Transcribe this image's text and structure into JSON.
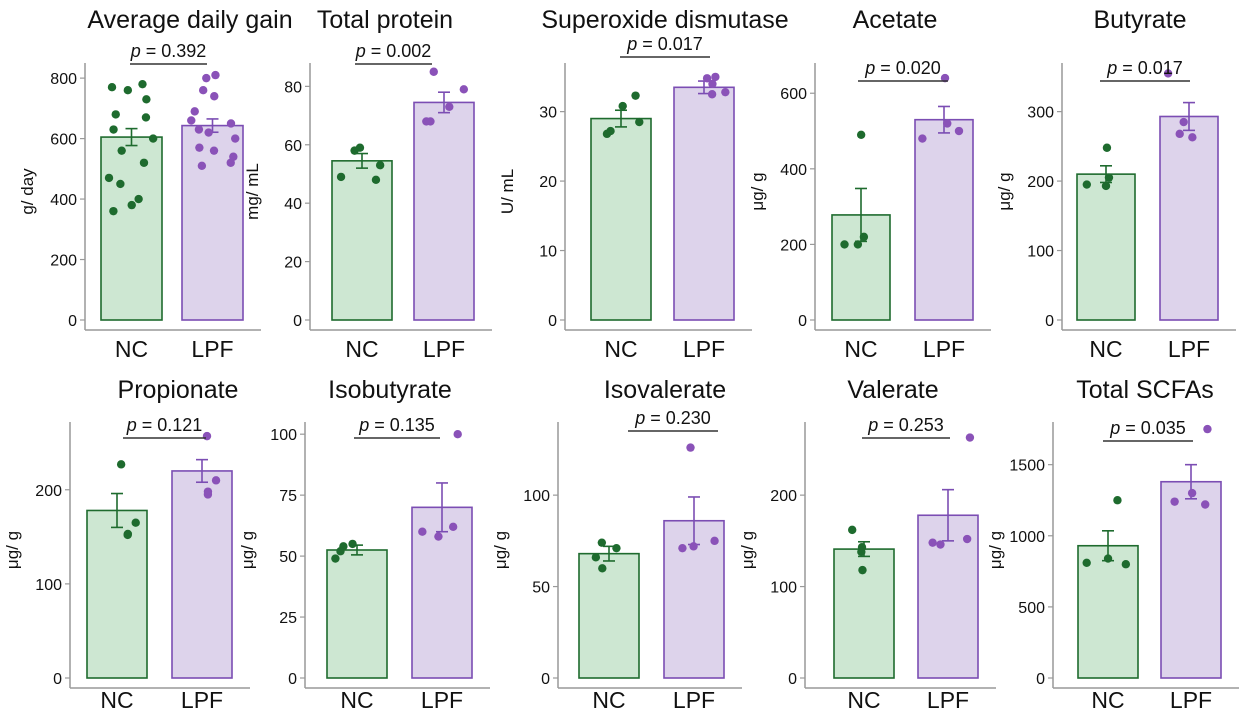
{
  "colors": {
    "nc_fill": "#cde7d2",
    "nc_stroke": "#1e6b2e",
    "nc_point": "#1e6b2e",
    "lpf_fill": "#ddd3eb",
    "lpf_stroke": "#7b4db3",
    "lpf_point": "#8a52b8",
    "axis": "#999999",
    "text": "#111111"
  },
  "chart_data": [
    {
      "type": "bar",
      "title": "Average daily gain",
      "ylabel": "g/ day",
      "pvalue": "p = 0.392",
      "categories": [
        "NC",
        "LPF"
      ],
      "values": [
        605,
        643
      ],
      "errors": [
        28,
        22
      ],
      "ylim": [
        0,
        850
      ],
      "yticks": [
        0,
        200,
        400,
        600,
        800
      ],
      "points": [
        [
          780,
          770,
          760,
          730,
          680,
          670,
          630,
          600,
          560,
          520,
          470,
          450,
          400,
          380,
          360
        ],
        [
          810,
          800,
          760,
          740,
          690,
          660,
          650,
          630,
          620,
          600,
          570,
          560,
          540,
          520,
          510
        ]
      ]
    },
    {
      "type": "bar",
      "title": "Total protein",
      "ylabel": "mg/ mL",
      "pvalue": "p = 0.002",
      "categories": [
        "NC",
        "LPF"
      ],
      "values": [
        54.5,
        74.5
      ],
      "errors": [
        2.5,
        3.5
      ],
      "ylim": [
        0,
        88
      ],
      "yticks": [
        0,
        20,
        40,
        60,
        80
      ],
      "points": [
        [
          59,
          58,
          53,
          49,
          48
        ],
        [
          85,
          79,
          73,
          68,
          68
        ]
      ]
    },
    {
      "type": "bar",
      "title": "Superoxide dismutase",
      "ylabel": "U/ mL",
      "pvalue": "p = 0.017",
      "categories": [
        "NC",
        "LPF"
      ],
      "values": [
        29,
        33.5
      ],
      "errors": [
        1.2,
        0.9
      ],
      "ylim": [
        0,
        37
      ],
      "yticks": [
        0,
        10,
        20,
        30
      ],
      "points": [
        [
          32.3,
          30.8,
          28.5,
          27.2,
          26.8
        ],
        [
          35,
          34.8,
          34,
          32.8,
          32.5
        ]
      ]
    },
    {
      "type": "bar",
      "title": "Acetate",
      "ylabel": "μg/ g",
      "pvalue": "p = 0.020",
      "categories": [
        "NC",
        "LPF"
      ],
      "values": [
        278,
        530
      ],
      "errors": [
        70,
        35
      ],
      "ylim": [
        0,
        680
      ],
      "yticks": [
        0,
        200,
        400,
        600
      ],
      "points": [
        [
          490,
          220,
          200,
          200
        ],
        [
          640,
          520,
          500,
          480
        ]
      ]
    },
    {
      "type": "bar",
      "title": "Butyrate",
      "ylabel": "μg/ g",
      "pvalue": "p = 0.017",
      "categories": [
        "NC",
        "LPF"
      ],
      "values": [
        210,
        293
      ],
      "errors": [
        12,
        20
      ],
      "ylim": [
        0,
        370
      ],
      "yticks": [
        0,
        100,
        200,
        300
      ],
      "points": [
        [
          248,
          205,
          195,
          193
        ],
        [
          355,
          285,
          268,
          263
        ]
      ]
    },
    {
      "type": "bar",
      "title": "Propionate",
      "ylabel": "μg/ g",
      "pvalue": "p = 0.121",
      "categories": [
        "NC",
        "LPF"
      ],
      "values": [
        178,
        220
      ],
      "errors": [
        18,
        12
      ],
      "ylim": [
        0,
        272
      ],
      "yticks": [
        0,
        100,
        200
      ],
      "points": [
        [
          227,
          165,
          153,
          152
        ],
        [
          257,
          210,
          198,
          195
        ]
      ]
    },
    {
      "type": "bar",
      "title": "Isobutyrate",
      "ylabel": "μg/ g",
      "pvalue": "p = 0.135",
      "categories": [
        "NC",
        "LPF"
      ],
      "values": [
        52.5,
        70
      ],
      "errors": [
        2,
        10
      ],
      "ylim": [
        0,
        105
      ],
      "yticks": [
        0,
        25,
        50,
        75,
        100
      ],
      "points": [
        [
          55,
          54,
          52,
          49
        ],
        [
          100,
          62,
          60,
          58
        ]
      ]
    },
    {
      "type": "bar",
      "title": "Isovalerate",
      "ylabel": "μg/ g",
      "pvalue": "p = 0.230",
      "categories": [
        "NC",
        "LPF"
      ],
      "values": [
        68,
        86
      ],
      "errors": [
        4,
        13
      ],
      "ylim": [
        0,
        140
      ],
      "yticks": [
        0,
        50,
        100
      ],
      "points": [
        [
          74,
          71,
          66,
          60
        ],
        [
          126,
          75,
          72,
          71
        ]
      ]
    },
    {
      "type": "bar",
      "title": "Valerate",
      "ylabel": "μg/ g",
      "pvalue": "p = 0.253",
      "categories": [
        "NC",
        "LPF"
      ],
      "values": [
        141,
        178
      ],
      "errors": [
        8,
        28
      ],
      "ylim": [
        0,
        280
      ],
      "yticks": [
        0,
        100,
        200
      ],
      "points": [
        [
          162,
          143,
          138,
          118
        ],
        [
          263,
          152,
          148,
          146
        ]
      ]
    },
    {
      "type": "bar",
      "title": "Total SCFAs",
      "ylabel": "μg/ g",
      "pvalue": "p = 0.035",
      "categories": [
        "NC",
        "LPF"
      ],
      "values": [
        930,
        1380
      ],
      "errors": [
        105,
        120
      ],
      "ylim": [
        0,
        1800
      ],
      "yticks": [
        0,
        500,
        1000,
        1500
      ],
      "points": [
        [
          1250,
          840,
          810,
          800
        ],
        [
          1750,
          1300,
          1240,
          1220
        ]
      ]
    }
  ]
}
